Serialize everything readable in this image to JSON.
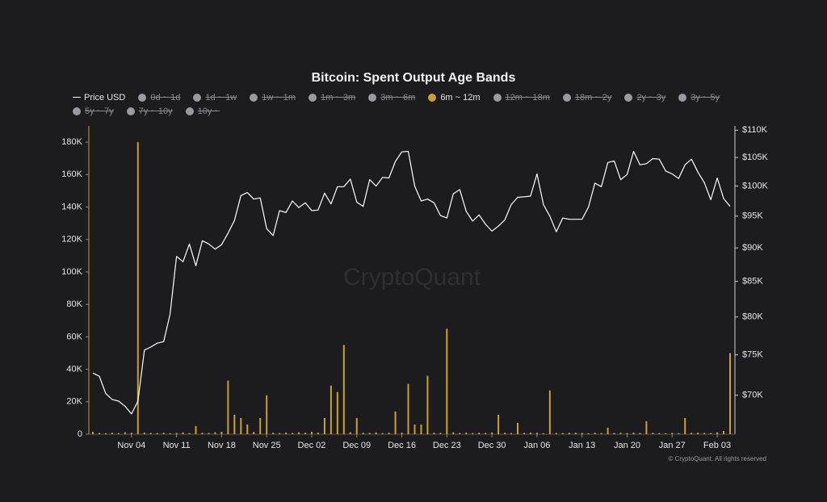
{
  "chart_data": {
    "type": "bar_line",
    "title": "Bitcoin: Spent Output Age Bands",
    "watermark": "CryptoQuant",
    "copyright": "© CryptoQuant. All rights reserved",
    "categories": [
      null,
      null,
      null,
      null,
      null,
      null,
      "Nov 04",
      null,
      null,
      null,
      null,
      null,
      null,
      "Nov 11",
      null,
      null,
      null,
      null,
      null,
      null,
      "Nov 18",
      null,
      null,
      null,
      null,
      null,
      null,
      "Nov 25",
      null,
      null,
      null,
      null,
      null,
      null,
      "Dec 02",
      null,
      null,
      null,
      null,
      null,
      null,
      "Dec 09",
      null,
      null,
      null,
      null,
      null,
      null,
      "Dec 16",
      null,
      null,
      null,
      null,
      null,
      null,
      "Dec 23",
      null,
      null,
      null,
      null,
      null,
      null,
      "Dec 30",
      null,
      null,
      null,
      null,
      null,
      null,
      "Jan 06",
      null,
      null,
      null,
      null,
      null,
      null,
      "Jan 13",
      null,
      null,
      null,
      null,
      null,
      null,
      "Jan 20",
      null,
      null,
      null,
      null,
      null,
      null,
      "Jan 27",
      null,
      null,
      null,
      null,
      null,
      null,
      "Feb 03",
      null,
      null
    ],
    "series": [
      {
        "name": "Price USD",
        "color": "#ffffff",
        "axis": "y2",
        "kind": "line",
        "values": [
          72700,
          72300,
          70200,
          69500,
          69300,
          68700,
          67800,
          69300,
          75600,
          76000,
          76500,
          76700,
          80400,
          88700,
          87900,
          90600,
          87300,
          91100,
          90600,
          89800,
          90500,
          92300,
          94300,
          98400,
          98900,
          97800,
          98000,
          93000,
          91900,
          95900,
          95600,
          97500,
          96400,
          97200,
          95900,
          96000,
          98800,
          97000,
          99900,
          99900,
          101200,
          97300,
          96600,
          101100,
          100000,
          101500,
          101400,
          104300,
          106000,
          106100,
          100000,
          97500,
          97800,
          97200,
          95100,
          94700,
          98700,
          99400,
          95800,
          94200,
          95200,
          93700,
          92600,
          93400,
          94400,
          96900,
          98100,
          98200,
          98300,
          102100,
          96900,
          95000,
          92500,
          94700,
          94500,
          94500,
          94500,
          96500,
          100500,
          99900,
          104100,
          104400,
          101100,
          102000,
          106100,
          103700,
          103900,
          104800,
          104700,
          102600,
          102100,
          101300,
          103700,
          104700,
          102400,
          100600,
          97700,
          101400,
          97900,
          96600
        ]
      },
      {
        "name": "6m ~ 12m",
        "color": "#c9a227",
        "kind": "bar",
        "values": [
          1500,
          800,
          600,
          900,
          700,
          1200,
          900,
          180000,
          1000,
          800,
          700,
          900,
          600,
          800,
          1100,
          700,
          5000,
          900,
          800,
          1200,
          1500,
          33000,
          12000,
          10000,
          6000,
          1400,
          10000,
          24000,
          900,
          700,
          1000,
          800,
          1200,
          900,
          1500,
          1000,
          10000,
          30000,
          26000,
          55000,
          1200,
          10000,
          900,
          800,
          1100,
          700,
          900,
          14000,
          1000,
          31000,
          6000,
          6000,
          36000,
          900,
          800,
          65000,
          1200,
          800,
          1000,
          700,
          900,
          800,
          1100,
          12000,
          900,
          700,
          7000,
          800,
          1000,
          900,
          600,
          27000,
          800,
          700,
          900,
          1000,
          800,
          600,
          900,
          700,
          4000,
          800,
          900,
          700,
          1000,
          800,
          8000,
          900,
          700,
          600,
          800,
          700,
          10000,
          900,
          1000,
          800,
          700,
          1100,
          2000,
          50000
        ]
      }
    ],
    "hidden_series_before": [
      "0d ~ 1d",
      "1d ~ 1w",
      "1w ~ 1m",
      "1m ~ 3m",
      "3m ~ 6m"
    ],
    "hidden_series_after": [
      "12m ~ 18m",
      "18m ~ 2y",
      "2y ~ 3y",
      "3y ~ 5y",
      "5y ~ 7y",
      "7y ~ 10y",
      "10y ~"
    ],
    "hidden_color": "#9a9aa0",
    "ylim": [
      0,
      188000
    ],
    "yticks": [
      0,
      {
        "value": 20000,
        "label": "20K"
      },
      {
        "value": 40000,
        "label": "40K"
      },
      {
        "value": 60000,
        "label": "60K"
      },
      {
        "value": 80000,
        "label": "80K"
      },
      {
        "value": 100000,
        "label": "100K"
      },
      {
        "value": 120000,
        "label": "120K"
      },
      {
        "value": 140000,
        "label": "140K"
      },
      {
        "value": 160000,
        "label": "160K"
      },
      {
        "value": 180000,
        "label": "180K"
      }
    ],
    "y2lim": [
      65500,
      110200
    ],
    "y2scale": "log",
    "y2ticks": [
      {
        "value": 70000,
        "label": "$70K"
      },
      {
        "value": 75000,
        "label": "$75K"
      },
      {
        "value": 80000,
        "label": "$80K"
      },
      {
        "value": 85000,
        "label": "$85K"
      },
      {
        "value": 90000,
        "label": "$90K"
      },
      {
        "value": 95000,
        "label": "$95K"
      },
      {
        "value": 100000,
        "label": "$100K"
      },
      {
        "value": 105000,
        "label": "$105K"
      },
      {
        "value": 110000,
        "label": "$110K"
      }
    ],
    "grid": false
  }
}
